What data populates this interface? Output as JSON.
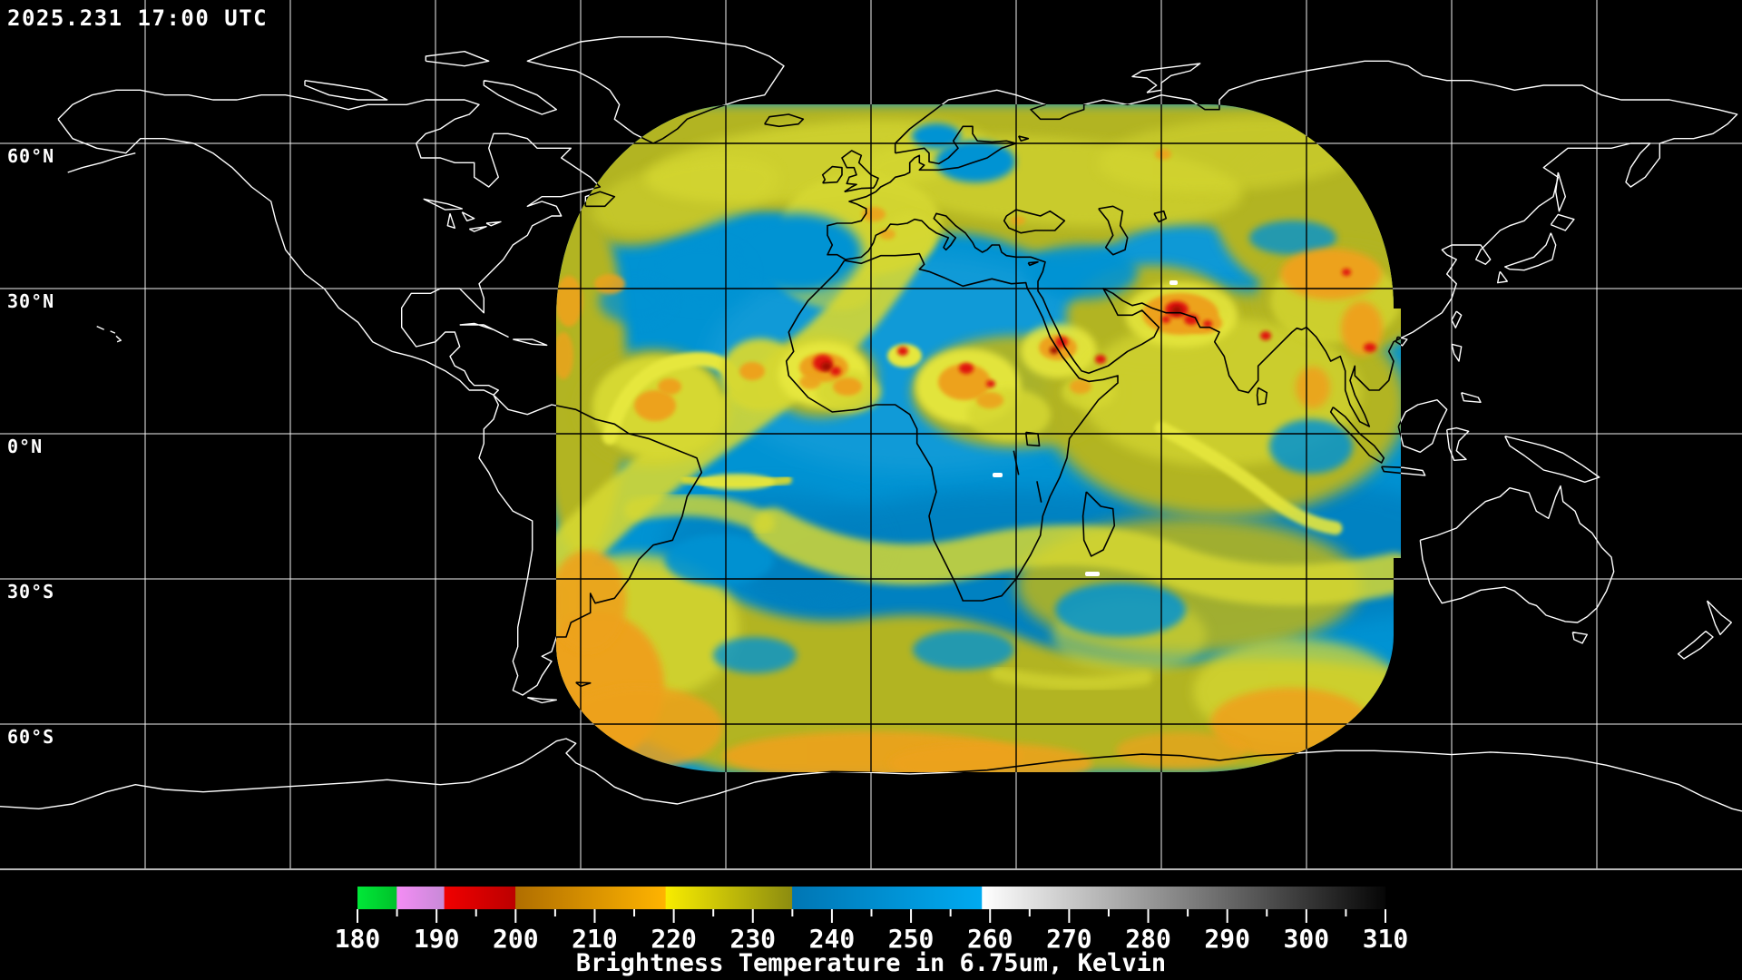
{
  "header": {
    "timestamp": "2025.231 17:00 UTC"
  },
  "map": {
    "latitude_labels": [
      {
        "label": "60°N"
      },
      {
        "label": "30°N"
      },
      {
        "label": "0°N"
      },
      {
        "label": "30°S"
      },
      {
        "label": "60°S"
      }
    ],
    "background_color": "#000000",
    "gridline_color_outside_swath": "#ffffff",
    "gridline_color_inside_swath": "#000000",
    "coastline_color_outside_swath": "#ffffff",
    "coastline_color_inside_swath": "#000000",
    "border_color": "#b8b8b8"
  },
  "swath": {
    "description": "geostationary water vapor brightness temperature field",
    "palette": {
      "moist_mid_level_blue": "#0093d3",
      "cloud_olive": "#b2b424",
      "cloud_yellow": "#d6d832",
      "cold_top_orange": "#eda21f",
      "very_cold_top_red": "#e01808",
      "deep_blue": "#0080c0"
    }
  },
  "colorbar": {
    "tick_labels": [
      "180",
      "190",
      "200",
      "210",
      "220",
      "230",
      "240",
      "250",
      "260",
      "270",
      "280",
      "290",
      "300",
      "310"
    ],
    "caption": "Brightness Temperature in 6.75um, Kelvin",
    "value_min": 180,
    "value_max": 310,
    "unit": "Kelvin",
    "segments": [
      {
        "from": 180,
        "to": 185,
        "color_start": "#00e838",
        "color_end": "#00c22a",
        "name": "green"
      },
      {
        "from": 185,
        "to": 191,
        "color_start": "#f48cf4",
        "color_end": "#c88ad8",
        "name": "violet"
      },
      {
        "from": 191,
        "to": 200,
        "color_start": "#f00000",
        "color_end": "#bc0000",
        "name": "red"
      },
      {
        "from": 200,
        "to": 219,
        "color_start": "#b06e00",
        "color_end": "#ffb400",
        "name": "orange"
      },
      {
        "from": 219,
        "to": 235,
        "color_start": "#f8ec00",
        "color_end": "#8c8c10",
        "name": "yellow-olive"
      },
      {
        "from": 235,
        "to": 259,
        "color_start": "#0076b4",
        "color_end": "#00aaf0",
        "name": "blue"
      },
      {
        "from": 259,
        "to": 310,
        "color_start": "#ffffff",
        "color_end": "#060606",
        "name": "white-to-black"
      }
    ]
  }
}
